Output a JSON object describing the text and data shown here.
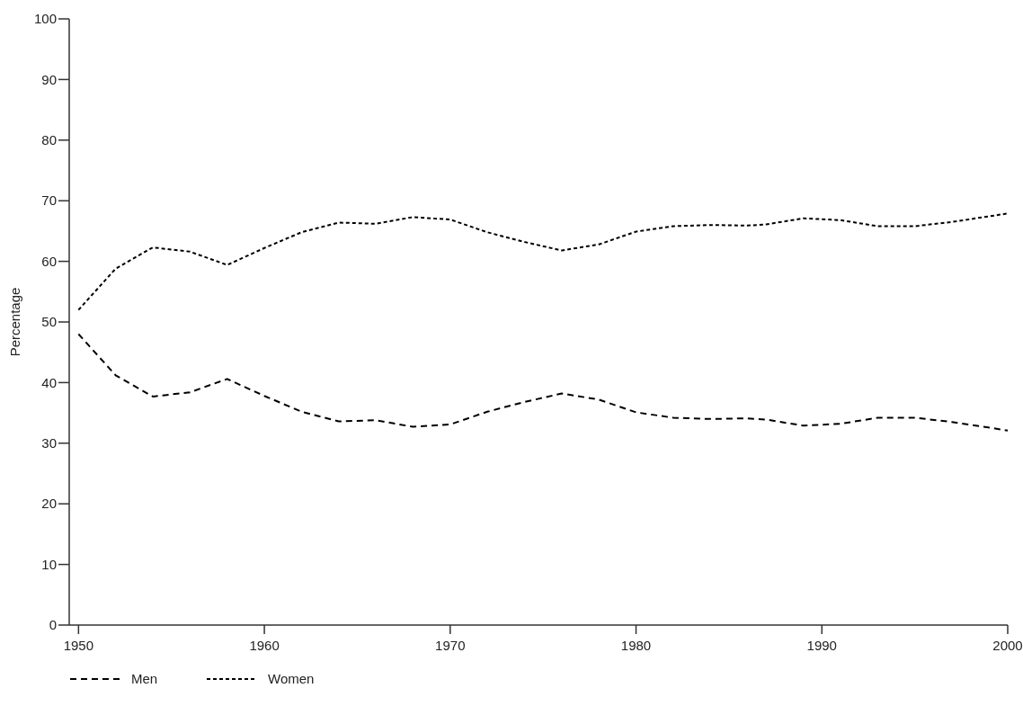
{
  "chart_data": {
    "type": "line",
    "ylabel": "Percentage",
    "x": [
      1950,
      1952,
      1954,
      1956,
      1958,
      1960,
      1962,
      1964,
      1966,
      1968,
      1970,
      1972,
      1974,
      1976,
      1978,
      1980,
      1982,
      1984,
      1986,
      1987,
      1989,
      1991,
      1993,
      1995,
      1997,
      2000
    ],
    "series": [
      {
        "name": "Men",
        "color": "#000000",
        "line_style": "dashed",
        "values": [
          48,
          41.2,
          37.7,
          38.4,
          40.6,
          37.8,
          35.2,
          33.6,
          33.8,
          32.7,
          33.1,
          35.2,
          36.8,
          38.2,
          37.2,
          35.1,
          34.2,
          34.0,
          34.1,
          33.9,
          32.9,
          33.2,
          34.2,
          34.2,
          33.5,
          32.1
        ]
      },
      {
        "name": "Women",
        "color": "#000000",
        "line_style": "dotted",
        "values": [
          52,
          58.8,
          62.3,
          61.6,
          59.4,
          62.2,
          64.8,
          66.4,
          66.2,
          67.3,
          66.9,
          64.8,
          63.2,
          61.8,
          62.8,
          64.9,
          65.8,
          66.0,
          65.9,
          66.1,
          67.1,
          66.8,
          65.8,
          65.8,
          66.5,
          67.9
        ]
      }
    ],
    "xlim": [
      1949.5,
      2000
    ],
    "xticks": [
      1950,
      1960,
      1970,
      1980,
      1990,
      2000
    ],
    "ylim": [
      0,
      100
    ],
    "yticks": [
      0,
      10,
      20,
      30,
      40,
      50,
      60,
      70,
      80,
      90,
      100
    ],
    "grid": false,
    "legend": "bottom left"
  }
}
